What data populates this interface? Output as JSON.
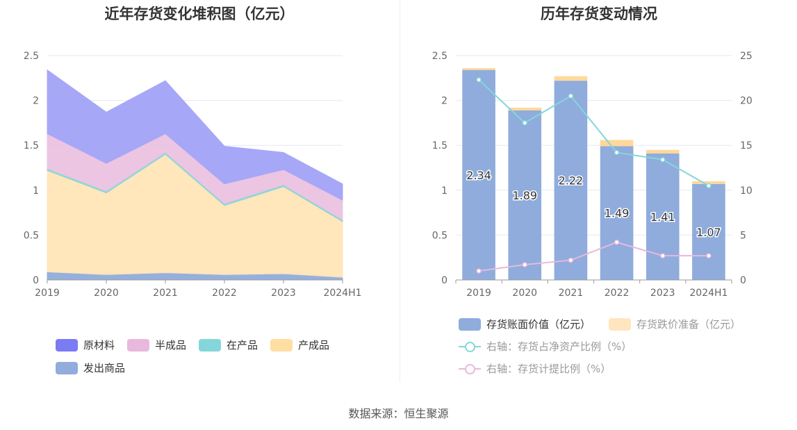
{
  "left": {
    "title": "近年存货变化堆积图（亿元）",
    "chart_data": {
      "type": "area",
      "stacked": true,
      "categories": [
        "2019",
        "2020",
        "2021",
        "2022",
        "2023",
        "2024H1"
      ],
      "ylim": [
        0,
        2.5
      ],
      "yticks": [
        "0",
        "0.5",
        "1",
        "1.5",
        "2",
        "2.5"
      ],
      "series": [
        {
          "name": "发出商品",
          "color": "#91acdd",
          "values": [
            0.09,
            0.06,
            0.08,
            0.06,
            0.07,
            0.03
          ]
        },
        {
          "name": "产成品",
          "color": "#ffe5b8",
          "values": [
            1.13,
            0.91,
            1.32,
            0.77,
            0.97,
            0.62
          ]
        },
        {
          "name": "在产品",
          "color": "#84d6da",
          "values": [
            0.02,
            0.02,
            0.02,
            0.02,
            0.02,
            0.02
          ]
        },
        {
          "name": "半成品",
          "color": "#eac2e1",
          "values": [
            0.39,
            0.31,
            0.21,
            0.22,
            0.17,
            0.22
          ]
        },
        {
          "name": "原材料",
          "color": "#a3a3f8",
          "values": [
            0.71,
            0.57,
            0.59,
            0.42,
            0.19,
            0.18
          ]
        }
      ]
    },
    "legend": [
      {
        "name": "原材料",
        "color": "#7b7bf3"
      },
      {
        "name": "半成品",
        "color": "#e8b8dd"
      },
      {
        "name": "在产品",
        "color": "#84d6da"
      },
      {
        "name": "产成品",
        "color": "#ffdea2"
      },
      {
        "name": "发出商品",
        "color": "#91acdd"
      }
    ]
  },
  "right": {
    "title": "历年存货变动情况",
    "chart_data": {
      "type": "bar",
      "categories": [
        "2019",
        "2020",
        "2021",
        "2022",
        "2023",
        "2024H1"
      ],
      "ylim": [
        0,
        2.5
      ],
      "y2lim": [
        0,
        25
      ],
      "yticks": [
        "0",
        "0.5",
        "1",
        "1.5",
        "2",
        "2.5"
      ],
      "y2ticks": [
        "0",
        "5",
        "10",
        "15",
        "20",
        "25"
      ],
      "series": [
        {
          "name": "存货账面价值（亿元）",
          "type": "bar",
          "stack": "inv",
          "color": "#8facdc",
          "values": [
            2.34,
            1.89,
            2.22,
            1.49,
            1.41,
            1.07
          ],
          "labels": [
            "2.34",
            "1.89",
            "2.22",
            "1.49",
            "1.41",
            "1.07"
          ]
        },
        {
          "name": "存货跌价准备（亿元）",
          "type": "bar",
          "stack": "inv",
          "color": "#ffd89a",
          "values": [
            0.02,
            0.03,
            0.05,
            0.07,
            0.04,
            0.03
          ]
        },
        {
          "name": "右轴：存货占净资产比例（%）",
          "type": "line",
          "axis": "right",
          "color": "#84d6da",
          "values": [
            22.3,
            17.5,
            20.5,
            14.2,
            13.4,
            10.5
          ]
        },
        {
          "name": "右轴：存货计提比例（%）",
          "type": "line",
          "axis": "right",
          "color": "#e8b8dd",
          "values": [
            1.0,
            1.7,
            2.2,
            4.2,
            2.7,
            2.7
          ]
        }
      ]
    },
    "legend": [
      {
        "name": "存货账面价值（亿元）",
        "color": "#8facdc",
        "kind": "box"
      },
      {
        "name": "存货跌价准备（亿元）",
        "color": "#ffe6bf",
        "kind": "box"
      },
      {
        "name": "右轴：存货占净资产比例（%）",
        "color": "#84d6da",
        "kind": "line"
      },
      {
        "name": "右轴：存货计提比例（%）",
        "color": "#e8b8dd",
        "kind": "line"
      }
    ]
  },
  "source": "数据来源：恒生聚源"
}
